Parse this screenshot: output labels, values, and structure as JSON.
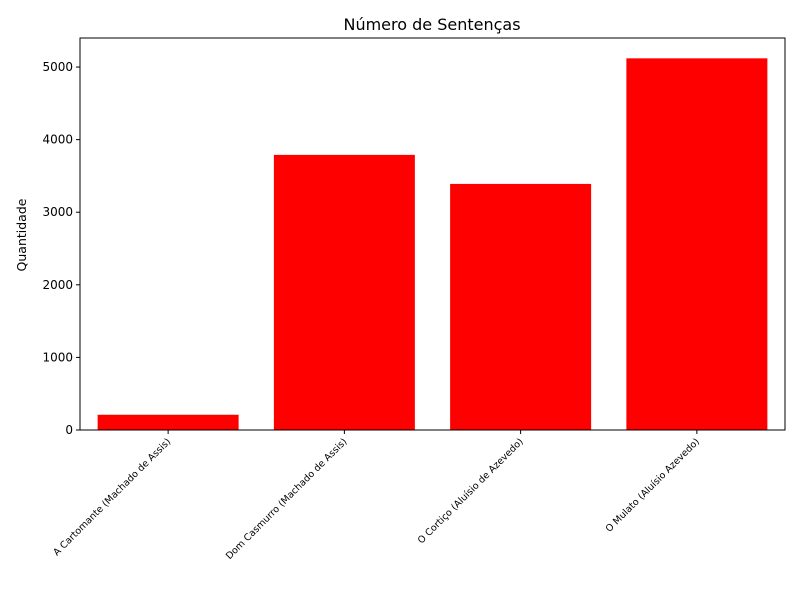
{
  "chart_data": {
    "type": "bar",
    "title": "Número de Sentenças",
    "xlabel": "",
    "ylabel": "Quantidade",
    "categories": [
      "A Cartomante (Machado de Assis)",
      "Dom Casmurro (Machado de Assis)",
      "O Cortiço (Aluísio de Azevedo)",
      "O Mulato (Aluísio Azevedo)"
    ],
    "values": [
      210,
      3790,
      3390,
      5120
    ],
    "ylim": [
      0,
      5400
    ],
    "yticks": [
      0,
      1000,
      2000,
      3000,
      4000,
      5000
    ],
    "ytick_labels": [
      "0",
      "1000",
      "2000",
      "3000",
      "4000",
      "5000"
    ],
    "bar_color": "#ff0000",
    "grid": false
  }
}
